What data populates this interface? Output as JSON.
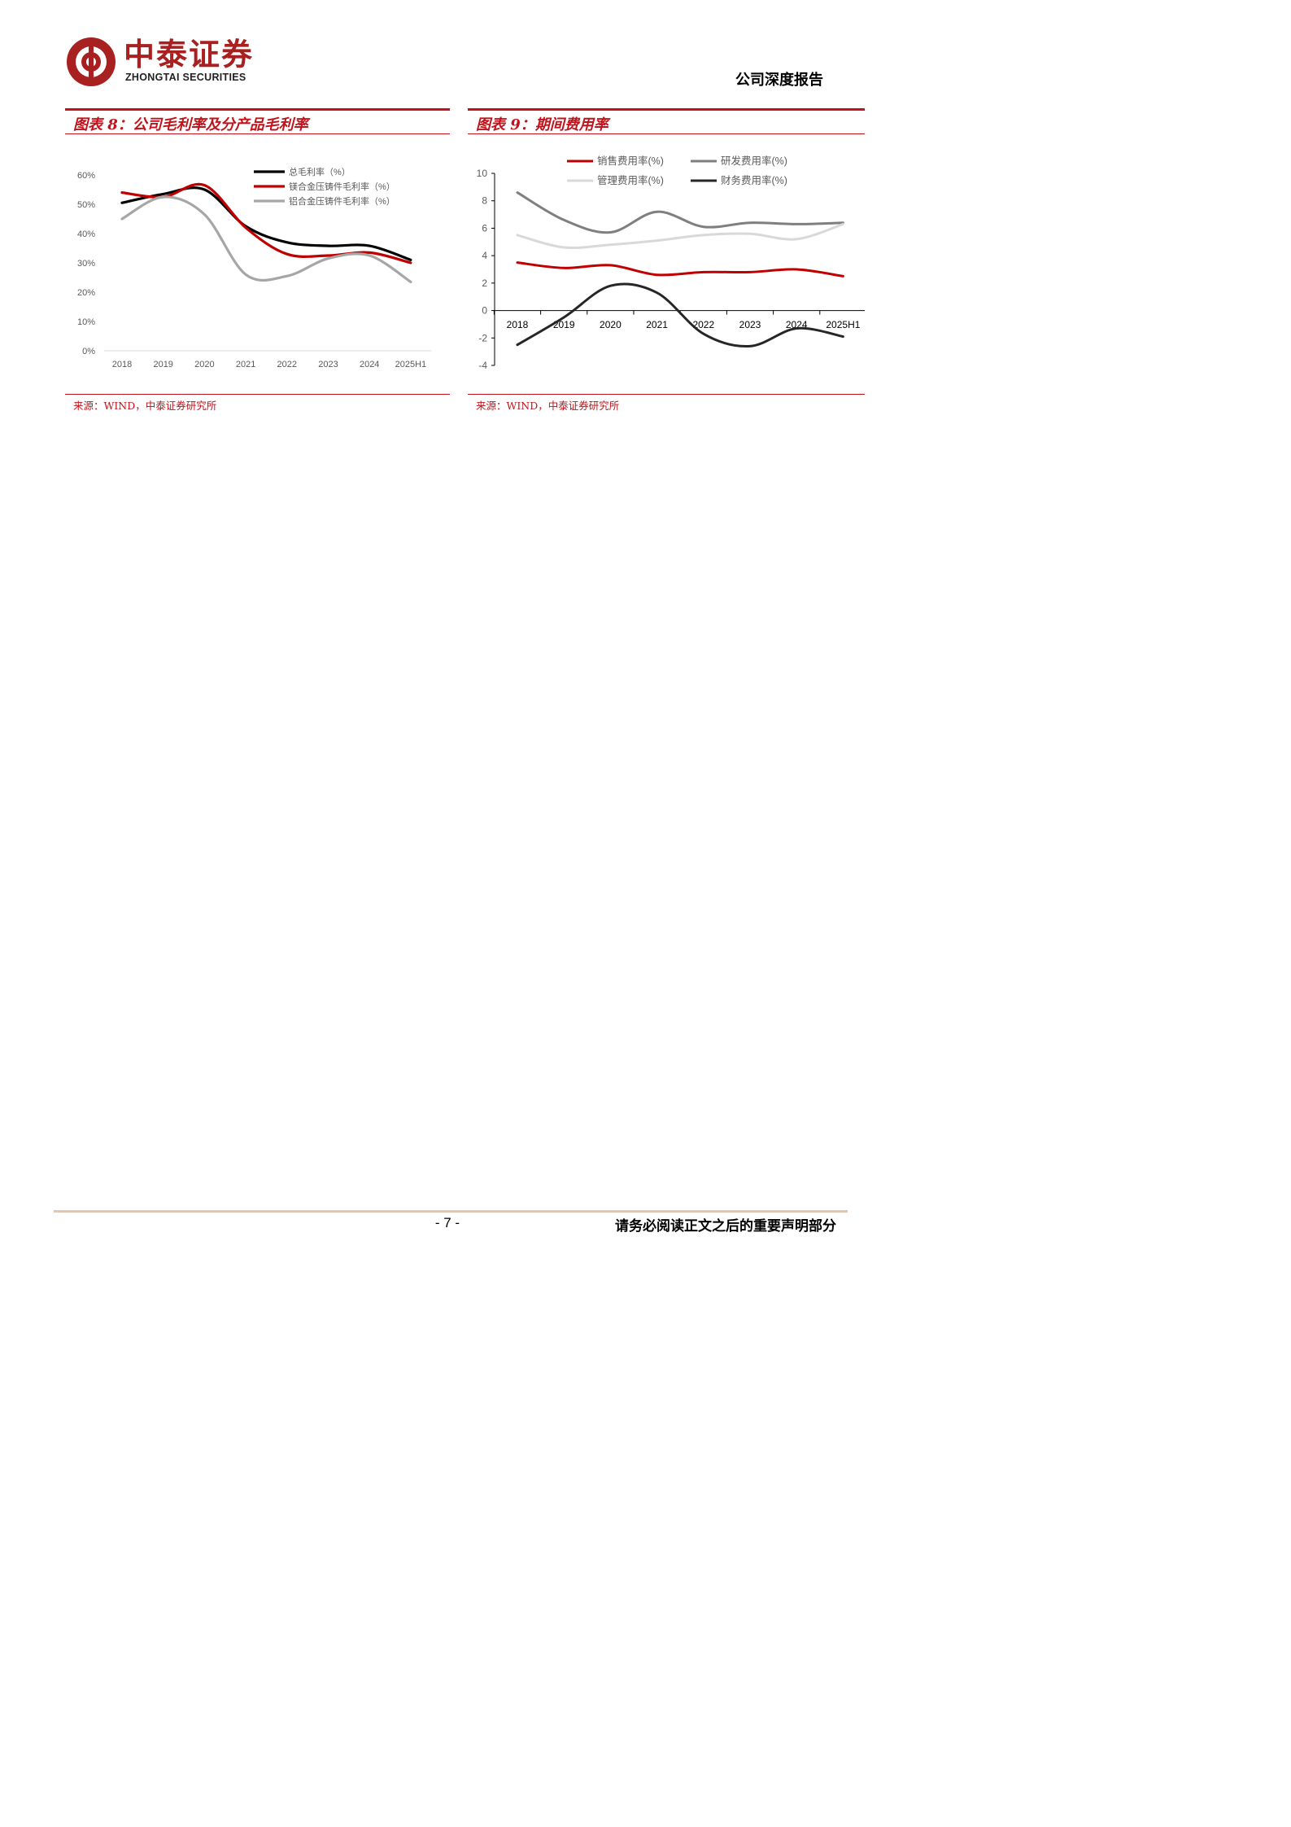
{
  "header": {
    "company_cn": "中泰证券",
    "company_en": "ZHONGTAI SECURITIES",
    "report_type": "公司深度报告"
  },
  "figures": [
    {
      "title": "图表 8：公司毛利率及分产品毛利率",
      "source": "来源：WIND，中泰证券研究所"
    },
    {
      "title": "图表 9：期间费用率",
      "source": "来源：WIND，中泰证券研究所"
    }
  ],
  "chart_data": [
    {
      "type": "line",
      "title": "公司毛利率及分产品毛利率",
      "categories": [
        "2018",
        "2019",
        "2020",
        "2021",
        "2022",
        "2023",
        "2024",
        "2025H1"
      ],
      "y_ticks": [
        "60%",
        "50%",
        "40%",
        "30%",
        "20%",
        "10%",
        "0%"
      ],
      "ylim": [
        0,
        60
      ],
      "legend_position": "top-right",
      "series": [
        {
          "name": "总毛利率（%）",
          "color": "#000000",
          "values": [
            50.5,
            53.5,
            55.0,
            42.5,
            37.0,
            35.8,
            35.8,
            31.0
          ]
        },
        {
          "name": "镁合金压铸件毛利率（%）",
          "color": "#c00000",
          "values": [
            54.0,
            52.5,
            56.5,
            42.0,
            33.0,
            32.5,
            33.5,
            30.0
          ]
        },
        {
          "name": "铝合金压铸件毛利率（%）",
          "color": "#a6a6a6",
          "values": [
            45.0,
            52.5,
            46.5,
            26.0,
            25.5,
            31.5,
            32.5,
            23.5
          ]
        }
      ]
    },
    {
      "type": "line",
      "title": "期间费用率",
      "categories": [
        "2018",
        "2019",
        "2020",
        "2021",
        "2022",
        "2023",
        "2024",
        "2025H1"
      ],
      "y_ticks": [
        "10",
        "8",
        "6",
        "4",
        "2",
        "0",
        "-2",
        "-4"
      ],
      "ylim": [
        -4,
        10
      ],
      "legend_position": "top",
      "series": [
        {
          "name": "销售费用率(%)",
          "color": "#c00000",
          "values": [
            3.5,
            3.1,
            3.3,
            2.6,
            2.8,
            2.8,
            3.0,
            2.5
          ]
        },
        {
          "name": "研发费用率(%)",
          "color": "#7f7f7f",
          "values": [
            8.6,
            6.6,
            5.7,
            7.2,
            6.1,
            6.4,
            6.3,
            6.4
          ]
        },
        {
          "name": "管理费用率(%)",
          "color": "#d9d9d9",
          "values": [
            5.5,
            4.6,
            4.8,
            5.1,
            5.5,
            5.6,
            5.2,
            6.3
          ]
        },
        {
          "name": "财务费用率(%)",
          "color": "#262626",
          "values": [
            -2.5,
            -0.5,
            1.8,
            1.3,
            -1.7,
            -2.6,
            -1.3,
            -1.9
          ]
        }
      ]
    }
  ],
  "footer": {
    "page_number": "- 7 -",
    "disclaimer": "请务必阅读正文之后的重要声明部分"
  }
}
